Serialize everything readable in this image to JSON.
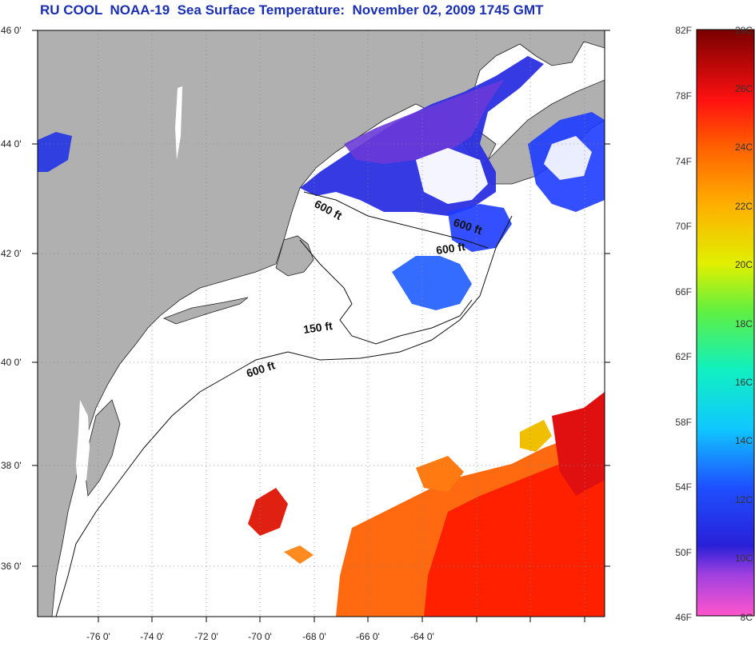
{
  "title": "RU COOL  NOAA-19  Sea Surface Temperature:  November 02, 2009 1745 GMT",
  "colors": {
    "land": "#b0b0b0",
    "ocean_missing": "#ffffff",
    "title": "#1a2fb0"
  },
  "axes": {
    "lat_labels": [
      "46 0'",
      "44 0'",
      "42 0'",
      "40 0'",
      "38 0'",
      "36 0'"
    ],
    "lon_labels": [
      "-76 0'",
      "-74 0'",
      "-72 0'",
      "-70 0'",
      "-68 0'",
      "-66 0'",
      "-64 0'"
    ]
  },
  "contour_labels": [
    "600 ft",
    "600 ft",
    "600 ft",
    "150 ft",
    "600 ft"
  ],
  "colorbar": {
    "fahrenheit": [
      "82F",
      "78F",
      "74F",
      "70F",
      "66F",
      "62F",
      "58F",
      "54F",
      "50F",
      "46F"
    ],
    "celsius": [
      "28C",
      "26C",
      "24C",
      "22C",
      "20C",
      "18C",
      "16C",
      "14C",
      "12C",
      "10C",
      "8C"
    ],
    "stops": [
      "#ff44cc",
      "#9b3ae0",
      "#2a1fd8",
      "#1e3cff",
      "#19a0ff",
      "#10e0f0",
      "#20f090",
      "#a0f020",
      "#f0f000",
      "#ffb000",
      "#ff6a00",
      "#ff1a00",
      "#c00000",
      "#7a0000"
    ]
  }
}
